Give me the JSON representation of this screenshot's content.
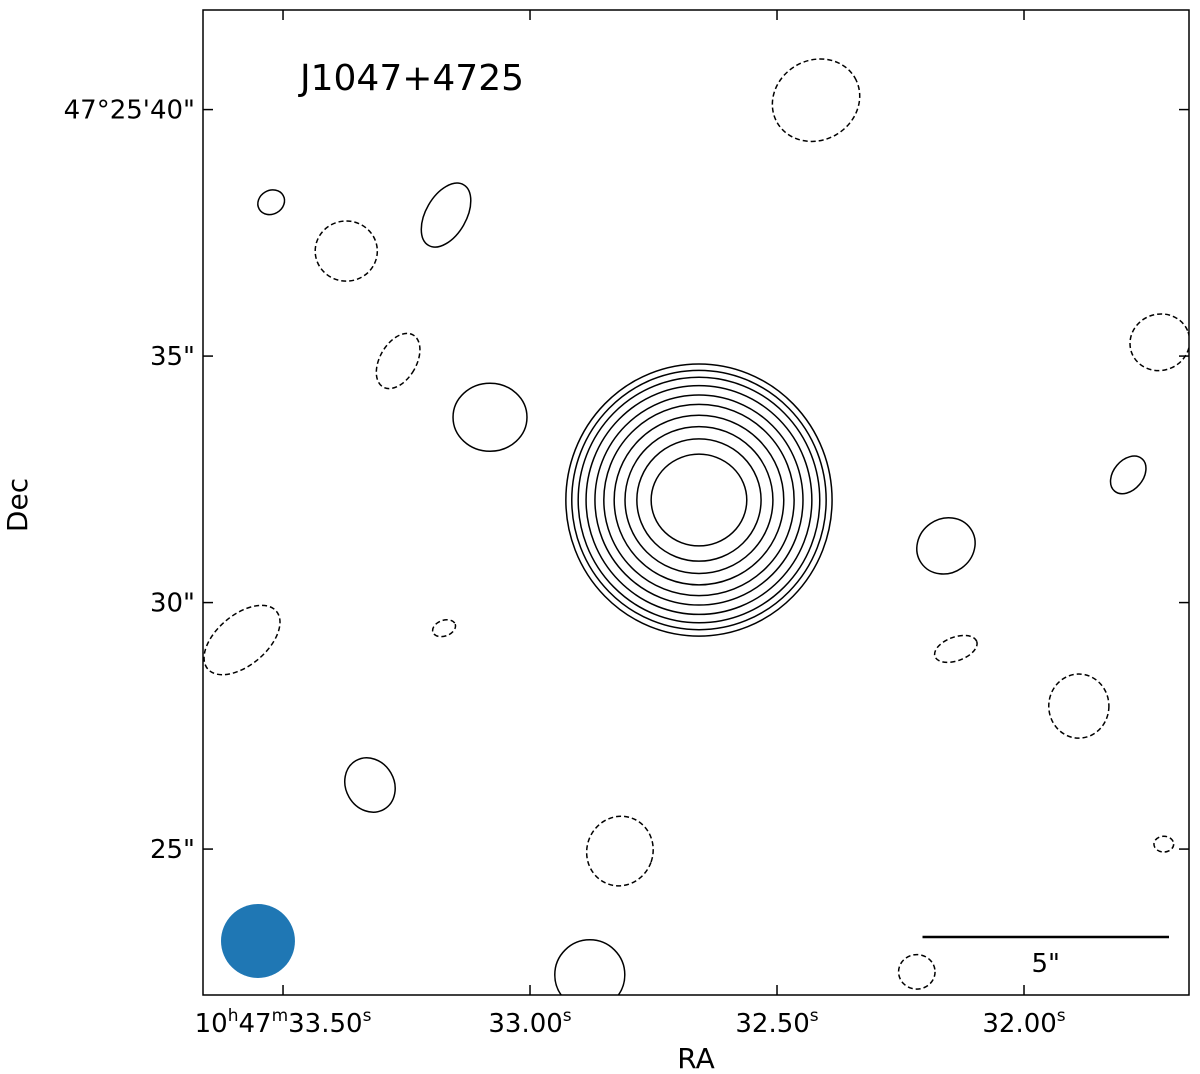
{
  "chart_data": {
    "type": "contour",
    "title": "J1047+4725",
    "x_label": "RA",
    "y_label": "Dec",
    "xlim": [
      33.662,
      31.666
    ],
    "ylim": [
      22.04,
      42.02
    ],
    "xticks": [
      {
        "value": 33.5,
        "label": "10h47m33.50s"
      },
      {
        "value": 33.0,
        "label": "33.00s"
      },
      {
        "value": 32.5,
        "label": "32.50s"
      },
      {
        "value": 32.0,
        "label": "32.00s"
      }
    ],
    "yticks": [
      {
        "value": 40,
        "label": "47°25'40\""
      },
      {
        "value": 35,
        "label": "35\""
      },
      {
        "value": 30,
        "label": "30\""
      },
      {
        "value": 25,
        "label": "25\""
      }
    ],
    "color": "#000000",
    "contours": [
      {
        "x": 32.658,
        "y": 32.08,
        "rx": 0.97,
        "ry": 0.93,
        "angle": 0,
        "linestyle": "solid"
      },
      {
        "x": 32.658,
        "y": 32.08,
        "rx": 1.26,
        "ry": 1.24,
        "angle": 0,
        "linestyle": "solid"
      },
      {
        "x": 32.658,
        "y": 32.08,
        "rx": 1.5,
        "ry": 1.49,
        "angle": 0,
        "linestyle": "solid"
      },
      {
        "x": 32.658,
        "y": 32.08,
        "rx": 1.72,
        "ry": 1.72,
        "angle": 0,
        "linestyle": "solid"
      },
      {
        "x": 32.658,
        "y": 32.08,
        "rx": 1.93,
        "ry": 1.94,
        "angle": 0,
        "linestyle": "solid"
      },
      {
        "x": 32.658,
        "y": 32.08,
        "rx": 2.11,
        "ry": 2.13,
        "angle": 0,
        "linestyle": "solid"
      },
      {
        "x": 32.658,
        "y": 32.08,
        "rx": 2.29,
        "ry": 2.32,
        "angle": 0,
        "linestyle": "solid"
      },
      {
        "x": 32.658,
        "y": 32.08,
        "rx": 2.45,
        "ry": 2.49,
        "angle": 0,
        "linestyle": "solid"
      },
      {
        "x": 32.658,
        "y": 32.08,
        "rx": 2.58,
        "ry": 2.63,
        "angle": 0,
        "linestyle": "solid"
      },
      {
        "x": 32.658,
        "y": 32.08,
        "rx": 2.7,
        "ry": 2.76,
        "angle": 0,
        "linestyle": "solid"
      },
      {
        "x": 32.421,
        "y": 40.19,
        "rx": 0.91,
        "ry": 0.81,
        "angle": -30,
        "linestyle": "dashed"
      },
      {
        "x": 33.524,
        "y": 38.12,
        "rx": 0.28,
        "ry": 0.24,
        "angle": -30,
        "linestyle": "solid"
      },
      {
        "x": 33.17,
        "y": 37.86,
        "rx": 0.41,
        "ry": 0.71,
        "angle": 30,
        "linestyle": "solid"
      },
      {
        "x": 33.372,
        "y": 37.13,
        "rx": 0.63,
        "ry": 0.61,
        "angle": 0,
        "linestyle": "dashed"
      },
      {
        "x": 33.267,
        "y": 34.9,
        "rx": 0.37,
        "ry": 0.61,
        "angle": 30,
        "linestyle": "dashed"
      },
      {
        "x": 33.081,
        "y": 33.76,
        "rx": 0.75,
        "ry": 0.69,
        "angle": 0,
        "linestyle": "solid"
      },
      {
        "x": 31.725,
        "y": 35.28,
        "rx": 0.61,
        "ry": 0.57,
        "angle": -20,
        "linestyle": "dashed"
      },
      {
        "x": 31.789,
        "y": 32.59,
        "rx": 0.3,
        "ry": 0.43,
        "angle": 40,
        "linestyle": "solid"
      },
      {
        "x": 32.158,
        "y": 31.15,
        "rx": 0.61,
        "ry": 0.55,
        "angle": -35,
        "linestyle": "solid"
      },
      {
        "x": 33.583,
        "y": 29.24,
        "rx": 0.91,
        "ry": 0.51,
        "angle": -40,
        "linestyle": "dashed"
      },
      {
        "x": 33.174,
        "y": 29.48,
        "rx": 0.24,
        "ry": 0.16,
        "angle": -20,
        "linestyle": "dashed"
      },
      {
        "x": 32.138,
        "y": 29.06,
        "rx": 0.45,
        "ry": 0.24,
        "angle": -20,
        "linestyle": "dashed"
      },
      {
        "x": 31.889,
        "y": 27.9,
        "rx": 0.61,
        "ry": 0.65,
        "angle": 0,
        "linestyle": "dashed"
      },
      {
        "x": 33.324,
        "y": 26.3,
        "rx": 0.49,
        "ry": 0.57,
        "angle": -30,
        "linestyle": "solid"
      },
      {
        "x": 32.818,
        "y": 24.96,
        "rx": 0.67,
        "ry": 0.71,
        "angle": 20,
        "linestyle": "dashed"
      },
      {
        "x": 31.717,
        "y": 25.1,
        "rx": 0.2,
        "ry": 0.16,
        "angle": 0,
        "linestyle": "dashed"
      },
      {
        "x": 32.879,
        "y": 22.45,
        "rx": 0.71,
        "ry": 0.71,
        "angle": 0,
        "linestyle": "solid"
      },
      {
        "x": 32.217,
        "y": 22.51,
        "rx": 0.37,
        "ry": 0.35,
        "angle": 0,
        "linestyle": "dashed"
      }
    ],
    "beam": {
      "major": 1.5,
      "minor": 1.5,
      "color": "#1f77b4"
    },
    "scalebar": {
      "length": 5,
      "label": "5\""
    }
  }
}
